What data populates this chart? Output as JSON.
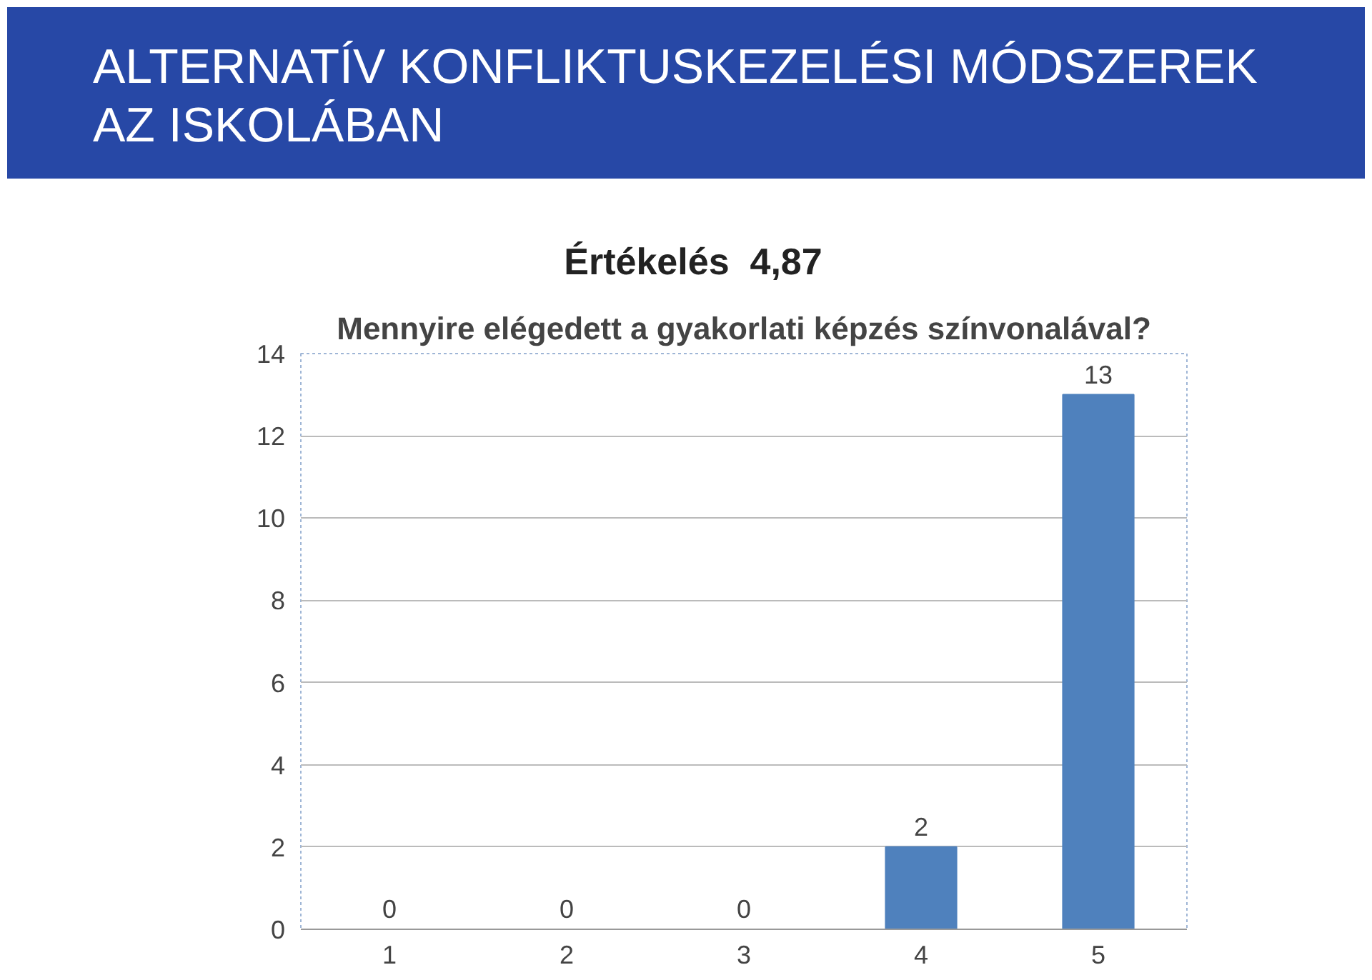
{
  "chart_data": {
    "type": "bar",
    "title": "ALTERNATÍV KONFLIKTUSKEZELÉSI MÓDSZEREK AZ ISKOLÁBAN",
    "subtitle": "Értékelés  4,87",
    "annotations": [
      "Mennyire elégedett a gyakorlati képzés színvonalával?"
    ],
    "categories": [
      "1",
      "2",
      "3",
      "4",
      "5"
    ],
    "values": [
      0,
      0,
      0,
      2,
      13
    ],
    "color": "#4f81bd",
    "ylim": [
      0,
      14
    ],
    "yticks": [
      0,
      2,
      4,
      6,
      8,
      10,
      12,
      14
    ],
    "grid": "y",
    "data_labels": true
  }
}
